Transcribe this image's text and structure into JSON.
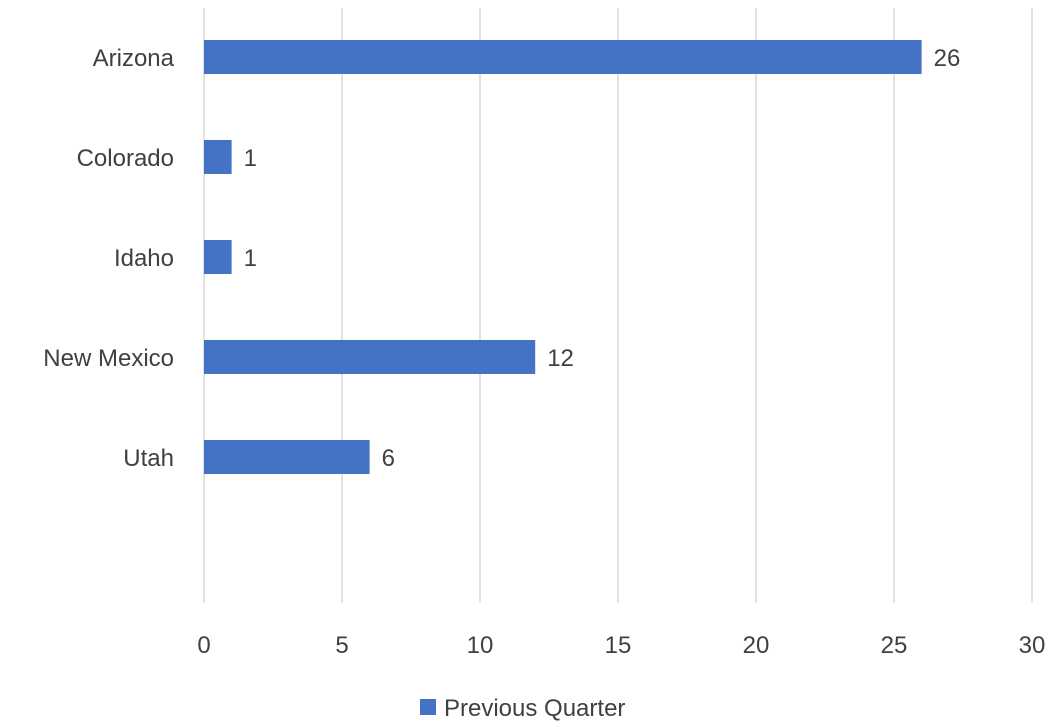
{
  "chart_data": {
    "type": "bar",
    "orientation": "horizontal",
    "categories": [
      "Arizona",
      "Colorado",
      "Idaho",
      "New Mexico",
      "Utah"
    ],
    "series": [
      {
        "name": "Previous Quarter",
        "values": [
          26,
          1,
          1,
          12,
          6
        ],
        "color": "#4472C4"
      }
    ],
    "data_labels": [
      "26",
      "1",
      "1",
      "12",
      "6"
    ],
    "x_ticks": [
      "0",
      "5",
      "10",
      "15",
      "20",
      "25",
      "30"
    ],
    "xlim": [
      0,
      30
    ],
    "grid": true,
    "legend_position": "bottom"
  },
  "colors": {
    "bar": "#4472C4",
    "grid": "#D9D9D9",
    "text": "#404040"
  }
}
